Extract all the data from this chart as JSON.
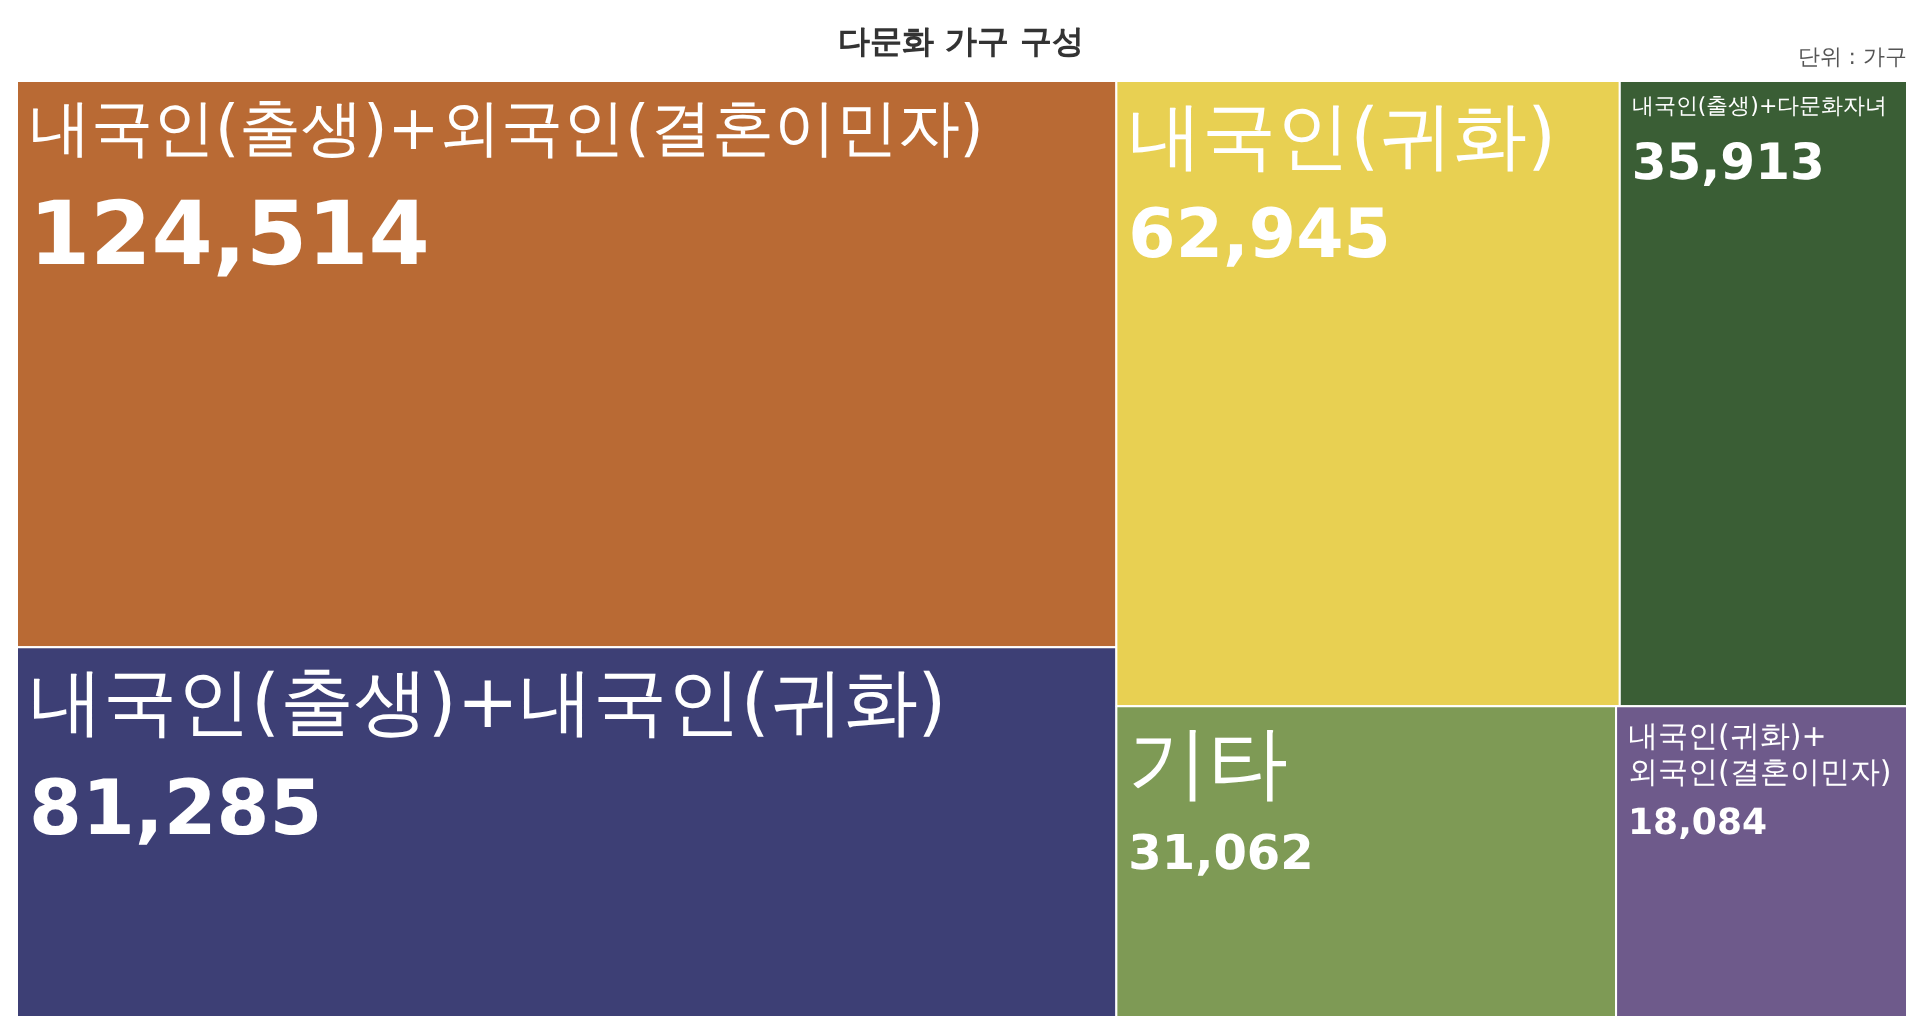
{
  "chart_data": {
    "type": "other",
    "title": "다문화 가구 구성",
    "annotations": [
      "단위 : 가구"
    ],
    "categories": [
      "내국인(출생)+외국인(결혼이민자)",
      "내국인(출생)+내국인(귀화)",
      "내국인(귀화)",
      "내국인(출생)+다문화자녀",
      "기타",
      "내국인(귀화)+외국인(결혼이민자)"
    ],
    "values": [
      124514,
      81285,
      62945,
      35913,
      31062,
      18084
    ],
    "colors": [
      "#b96a34",
      "#3d3f75",
      "#e8d052",
      "#3a5e35",
      "#7e9a55",
      "#6e5a8b"
    ],
    "value_labels": [
      "124,514",
      "81,285",
      "62,945",
      "35,913",
      "31,062",
      "18,084"
    ]
  }
}
